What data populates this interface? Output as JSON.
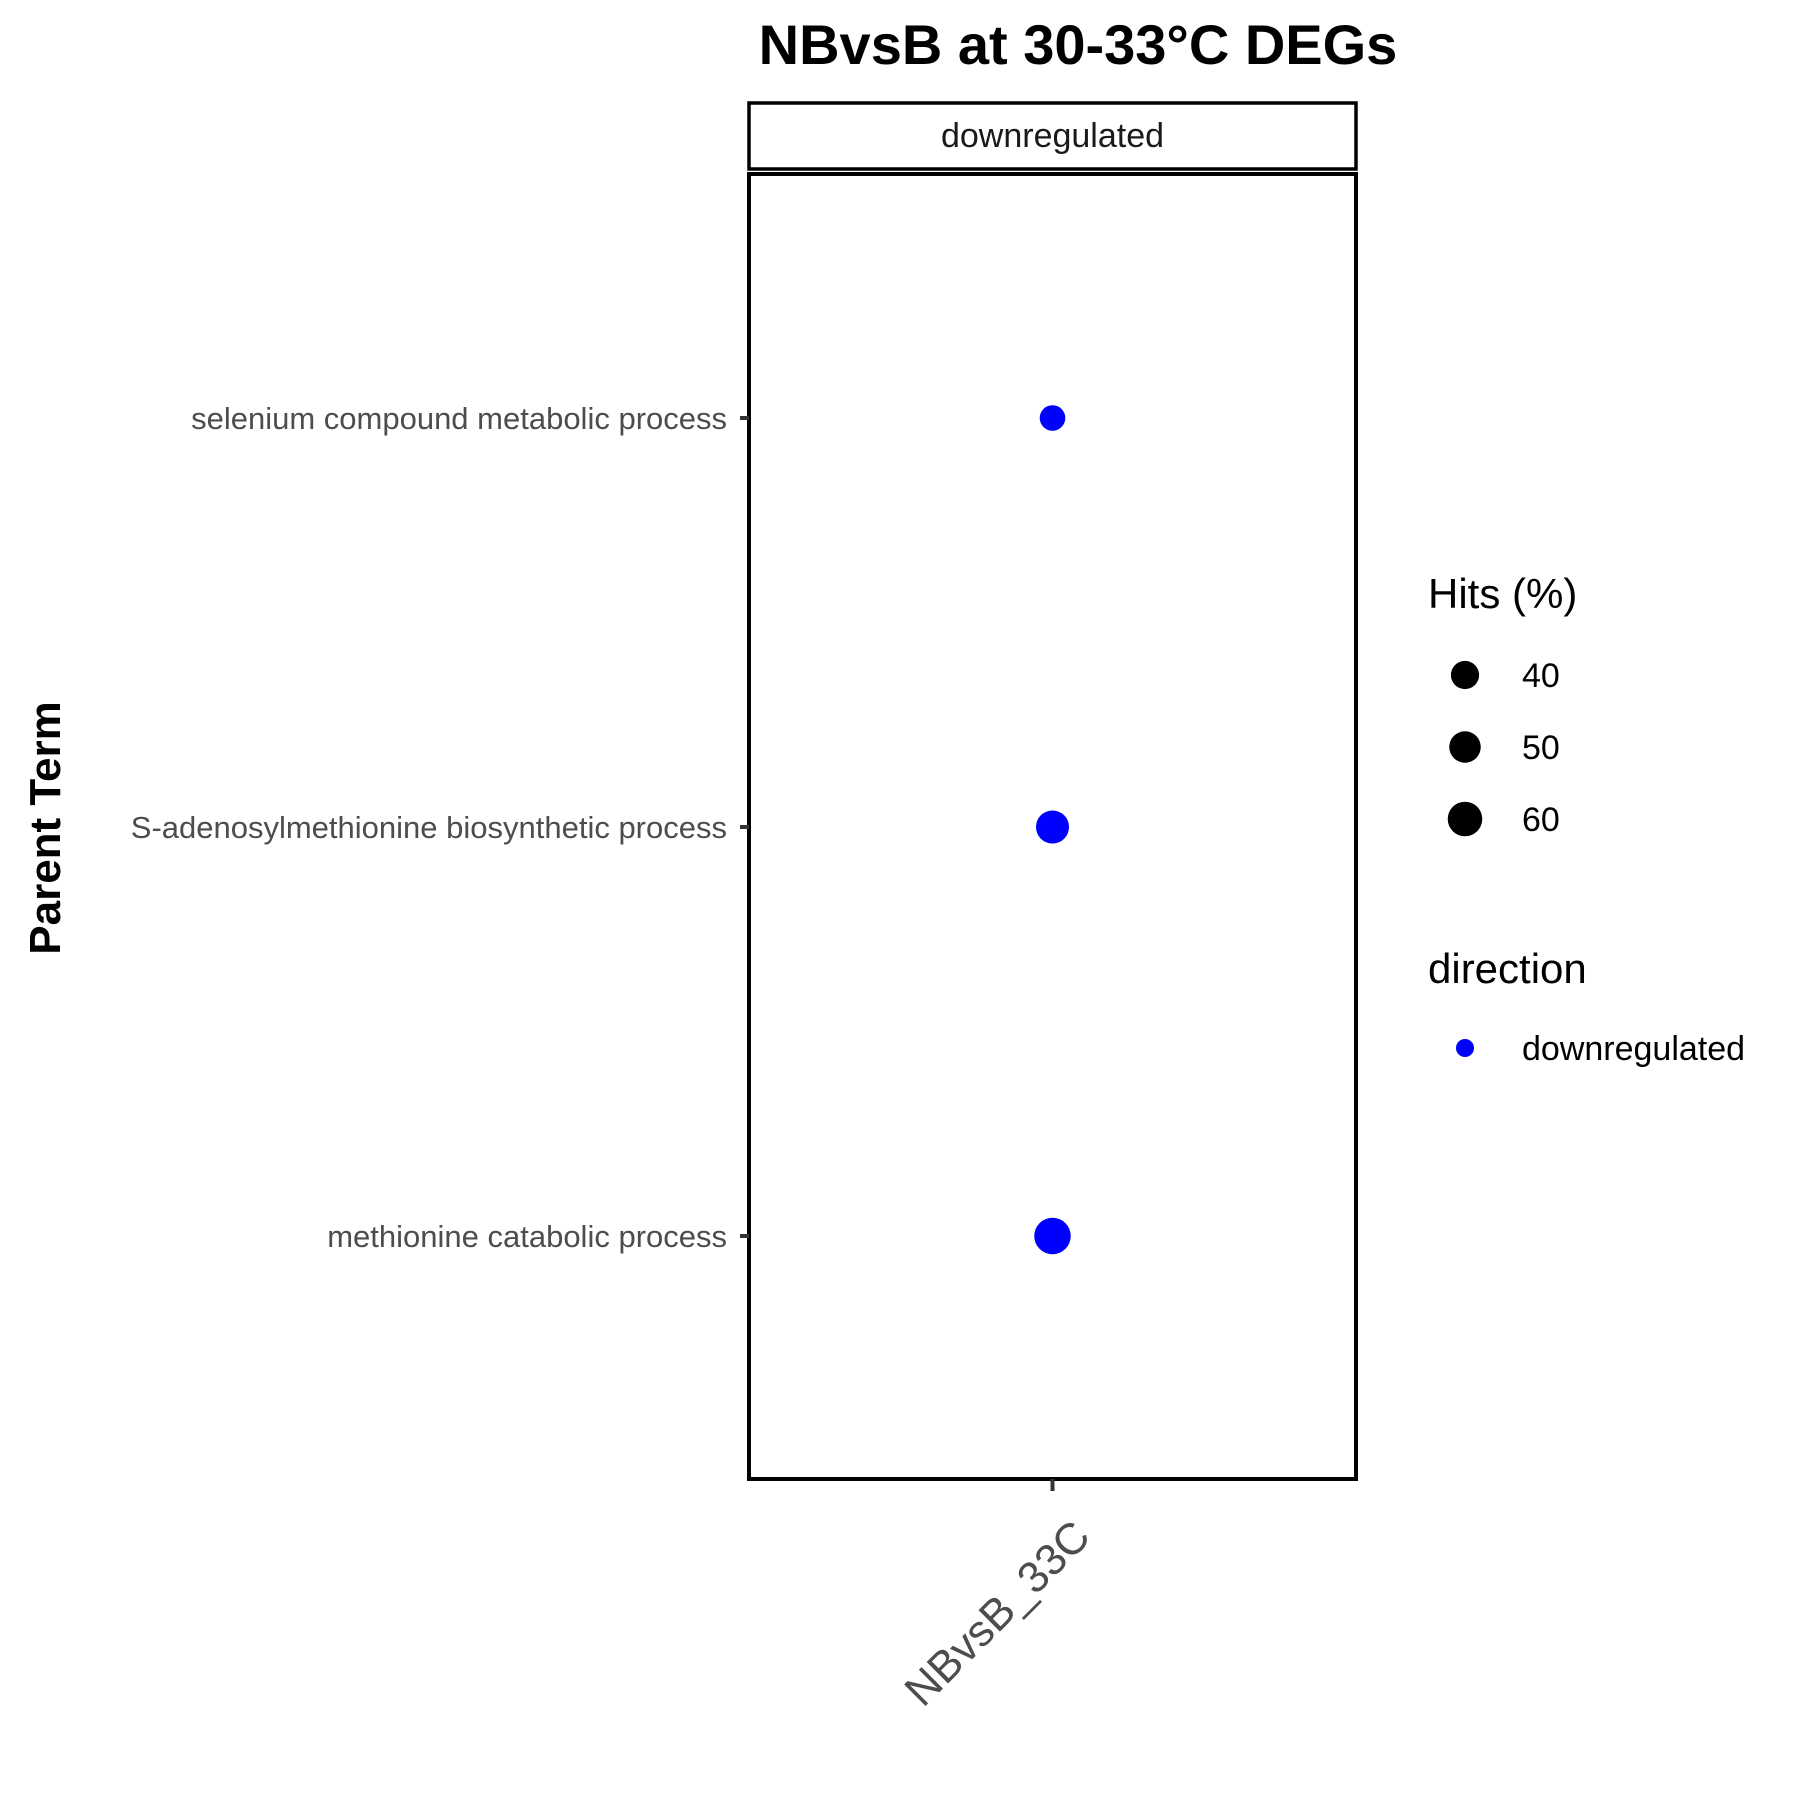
{
  "chart_data": {
    "type": "scatter",
    "title": "NBvsB at 30-33°C DEGs",
    "facet": "downregulated",
    "xlabel": "",
    "ylabel": "Parent Term",
    "x_categories": [
      "NBvsB_33C"
    ],
    "y_categories": [
      "selenium compound metabolic process",
      "S-adenosylmethionine biosynthetic process",
      "methionine catabolic process"
    ],
    "points": [
      {
        "x": "NBvsB_33C",
        "y": "selenium compound metabolic process",
        "hits": 33,
        "direction": "downregulated"
      },
      {
        "x": "NBvsB_33C",
        "y": "S-adenosylmethionine biosynthetic process",
        "hits": 55,
        "direction": "downregulated"
      },
      {
        "x": "NBvsB_33C",
        "y": "methionine catabolic process",
        "hits": 67,
        "direction": "downregulated"
      }
    ],
    "size_legend": {
      "title": "Hits (%)",
      "values": [
        40,
        50,
        60
      ]
    },
    "color_legend": {
      "title": "direction",
      "entries": [
        {
          "label": "downregulated",
          "color": "#0000ff"
        }
      ]
    },
    "legend_placement": "right",
    "grid": false
  }
}
